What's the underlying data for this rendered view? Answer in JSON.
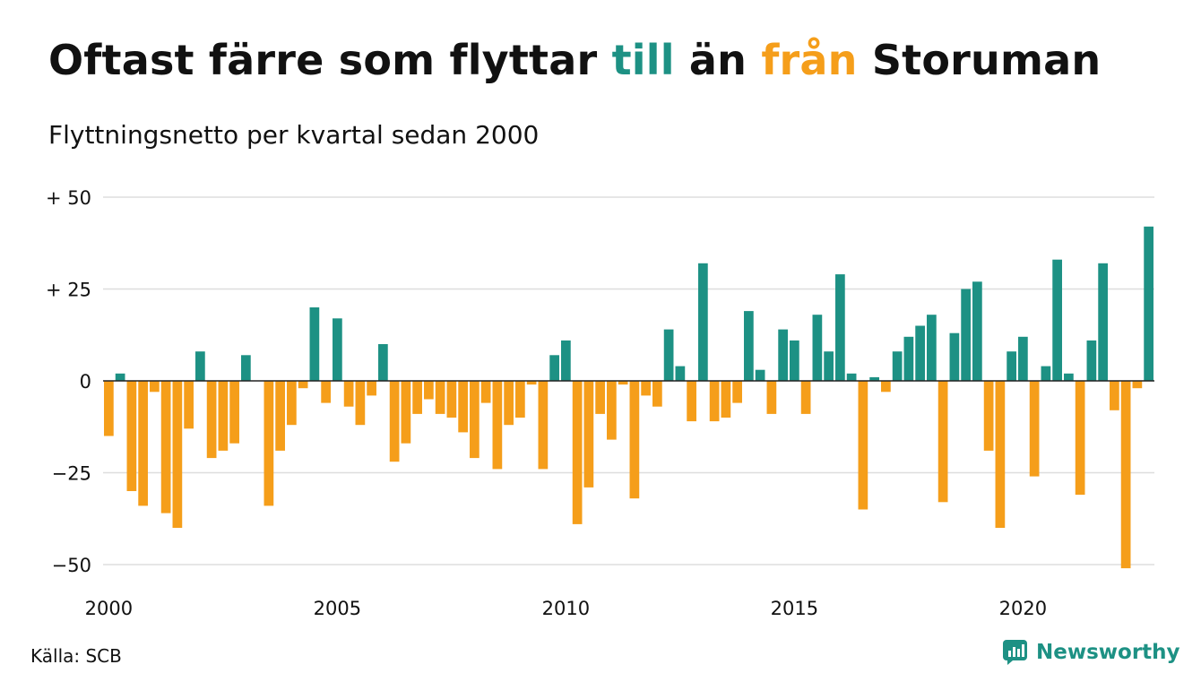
{
  "header": {
    "title_part1": "Oftast färre som flyttar ",
    "title_green": "till",
    "title_part2": " än ",
    "title_orange": "från",
    "title_part3": " Storuman",
    "subtitle": "Flyttningsnetto per kvartal sedan 2000"
  },
  "footer": {
    "source": "Källa: SCB",
    "brand": "Newsworthy",
    "brand_icon": "newsworthy-logo-icon"
  },
  "colors": {
    "positive": "#1d9184",
    "negative": "#f59e1a",
    "grid": "#dddddd",
    "zero_line": "#222222"
  },
  "chart_data": {
    "type": "bar",
    "x_start": "2000 Q1",
    "x_tick_labels": [
      "2000",
      "2005",
      "2010",
      "2015",
      "2020"
    ],
    "y_tick_labels": [
      "+ 50",
      "+ 25",
      "0",
      "−25",
      "−50"
    ],
    "y_ticks": [
      50,
      25,
      0,
      -25,
      -50
    ],
    "ylim": [
      -55,
      50
    ],
    "grid": true,
    "values": [
      -15,
      2,
      -30,
      -34,
      -3,
      -36,
      -40,
      -13,
      8,
      -21,
      -19,
      -17,
      7,
      0,
      -34,
      -19,
      -12,
      -2,
      20,
      -6,
      17,
      -7,
      -12,
      -4,
      10,
      -22,
      -17,
      -9,
      -5,
      -9,
      -10,
      -14,
      -21,
      -6,
      -24,
      -12,
      -10,
      -1,
      -24,
      7,
      11,
      -39,
      -29,
      -9,
      -16,
      -1,
      -32,
      -4,
      -7,
      14,
      4,
      -11,
      32,
      -11,
      -10,
      -6,
      19,
      3,
      -9,
      14,
      11,
      -9,
      18,
      8,
      29,
      2,
      -35,
      1,
      -3,
      8,
      12,
      15,
      18,
      -33,
      13,
      25,
      27,
      -19,
      -40,
      8,
      12,
      -26,
      4,
      33,
      2,
      -31,
      11,
      32,
      -8,
      -51,
      -2,
      42
    ]
  }
}
